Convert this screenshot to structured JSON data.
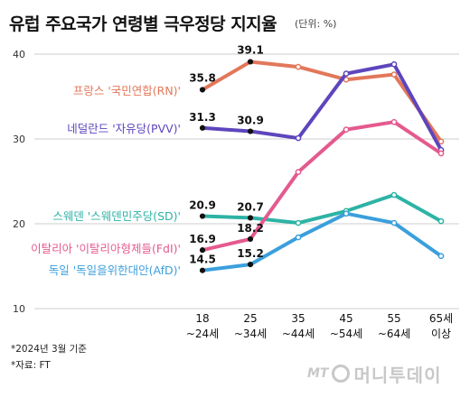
{
  "title": "유럽 주요국가 연령별 극우정당 지지율",
  "subtitle": "(단위: %)",
  "notes": [
    "*2024년 3월 기준",
    "*자료: FT"
  ],
  "logo": {
    "mt": "MT",
    "name": "머니투데이"
  },
  "chart_data": {
    "type": "line",
    "title": "유럽 주요국가 연령별 극우정당 지지율",
    "ylabel": "",
    "xlabel": "",
    "ylim": [
      10,
      40
    ],
    "yticks": [
      10,
      20,
      30,
      40
    ],
    "grid": "horizontal",
    "categories": [
      {
        "top": "18",
        "bottom": "~24세"
      },
      {
        "top": "25",
        "bottom": "~34세"
      },
      {
        "top": "35",
        "bottom": "~44세"
      },
      {
        "top": "45",
        "bottom": "~54세"
      },
      {
        "top": "55",
        "bottom": "~64세"
      },
      {
        "top": "65세",
        "bottom": "이상"
      }
    ],
    "series": [
      {
        "name": "프랑스 '국민연합(RN)'",
        "color": "#e2775a",
        "values": [
          35.8,
          39.1,
          38.5,
          37.0,
          37.6,
          29.7
        ],
        "labels": [
          "35.8",
          "39.1"
        ]
      },
      {
        "name": "네덜란드 '자유당(PVV)'",
        "color": "#5e45bd",
        "values": [
          31.3,
          30.9,
          30.1,
          37.7,
          38.8,
          28.7
        ],
        "labels": [
          "31.3",
          "30.9"
        ]
      },
      {
        "name": "스웨덴 '스웨덴민주당(SD)'",
        "color": "#2db3a5",
        "values": [
          20.9,
          20.7,
          20.1,
          21.5,
          23.4,
          20.3
        ],
        "labels": [
          "20.9",
          "20.7"
        ]
      },
      {
        "name": "이탈리아 '이탈리아형제들(FdI)'",
        "color": "#e45a8e",
        "values": [
          16.9,
          18.2,
          26.1,
          31.1,
          32.0,
          28.3
        ],
        "labels": [
          "16.9",
          "18.2"
        ]
      },
      {
        "name": "독일 '독일을위한대안(AfD)'",
        "color": "#3b9fdc",
        "values": [
          14.5,
          15.2,
          18.4,
          21.2,
          20.1,
          16.2
        ],
        "labels": [
          "14.5",
          "15.2"
        ]
      }
    ]
  }
}
